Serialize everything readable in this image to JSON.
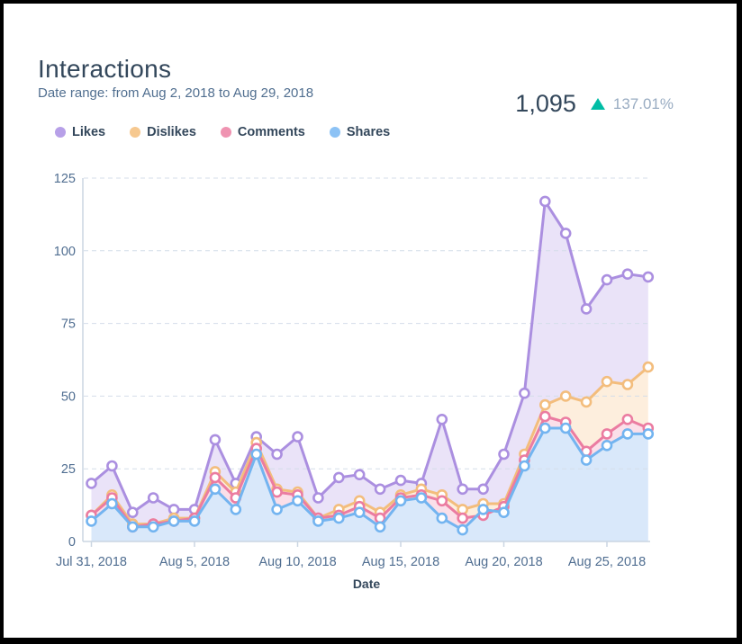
{
  "header": {
    "title": "Interactions",
    "subtitle": "Date range: from Aug 2, 2018 to Aug 29, 2018"
  },
  "stats": {
    "total": "1,095",
    "change": "137.01%",
    "direction": "up",
    "arrow_color": "#00bda5"
  },
  "chart_data": {
    "type": "area",
    "title": "Interactions",
    "xlabel": "Date",
    "ylabel": "",
    "ylim": [
      0,
      125
    ],
    "y_ticks": [
      0,
      25,
      50,
      75,
      100,
      125
    ],
    "grid": true,
    "grid_style": "dashed",
    "legend_position": "top",
    "x_tick_labels": [
      {
        "index": 0,
        "label": "Jul 31, 2018"
      },
      {
        "index": 5,
        "label": "Aug 5, 2018"
      },
      {
        "index": 10,
        "label": "Aug 10, 2018"
      },
      {
        "index": 15,
        "label": "Aug 15, 2018"
      },
      {
        "index": 20,
        "label": "Aug 20, 2018"
      },
      {
        "index": 25,
        "label": "Aug 25, 2018"
      }
    ],
    "series": [
      {
        "name": "Likes",
        "line_color": "#ab8fe0",
        "dot_color": "#b7a0e8",
        "fill_color": "#eae3f8",
        "values": [
          20,
          26,
          10,
          15,
          11,
          11,
          35,
          20,
          36,
          30,
          36,
          15,
          22,
          23,
          18,
          21,
          20,
          42,
          18,
          18,
          30,
          51,
          117,
          106,
          80,
          90,
          92,
          91
        ]
      },
      {
        "name": "Dislikes",
        "line_color": "#f3bd7d",
        "dot_color": "#f6c88f",
        "fill_color": "#fdeedd",
        "values": [
          9,
          16,
          6,
          6,
          8,
          8,
          24,
          17,
          34,
          18,
          17,
          8,
          11,
          14,
          10,
          16,
          18,
          16,
          11,
          13,
          13,
          30,
          47,
          50,
          48,
          55,
          54,
          60
        ]
      },
      {
        "name": "Comments",
        "line_color": "#eb7ca1",
        "dot_color": "#ef93b1",
        "fill_color": "#fbdfe9",
        "values": [
          9,
          15,
          5,
          6,
          7,
          8,
          22,
          15,
          32,
          17,
          16,
          8,
          9,
          12,
          8,
          15,
          16,
          14,
          8,
          9,
          12,
          28,
          43,
          41,
          31,
          37,
          42,
          39
        ]
      },
      {
        "name": "Shares",
        "line_color": "#73b4f0",
        "dot_color": "#8cc2f5",
        "fill_color": "#d9e8fa",
        "values": [
          7,
          13,
          5,
          5,
          7,
          7,
          18,
          11,
          30,
          11,
          14,
          7,
          8,
          10,
          5,
          14,
          15,
          8,
          4,
          11,
          10,
          26,
          39,
          39,
          28,
          33,
          37,
          37
        ]
      }
    ],
    "axis_color": "#cbd6e2",
    "gridline_color": "#d4dde9",
    "tick_label_color": "#506e91"
  }
}
